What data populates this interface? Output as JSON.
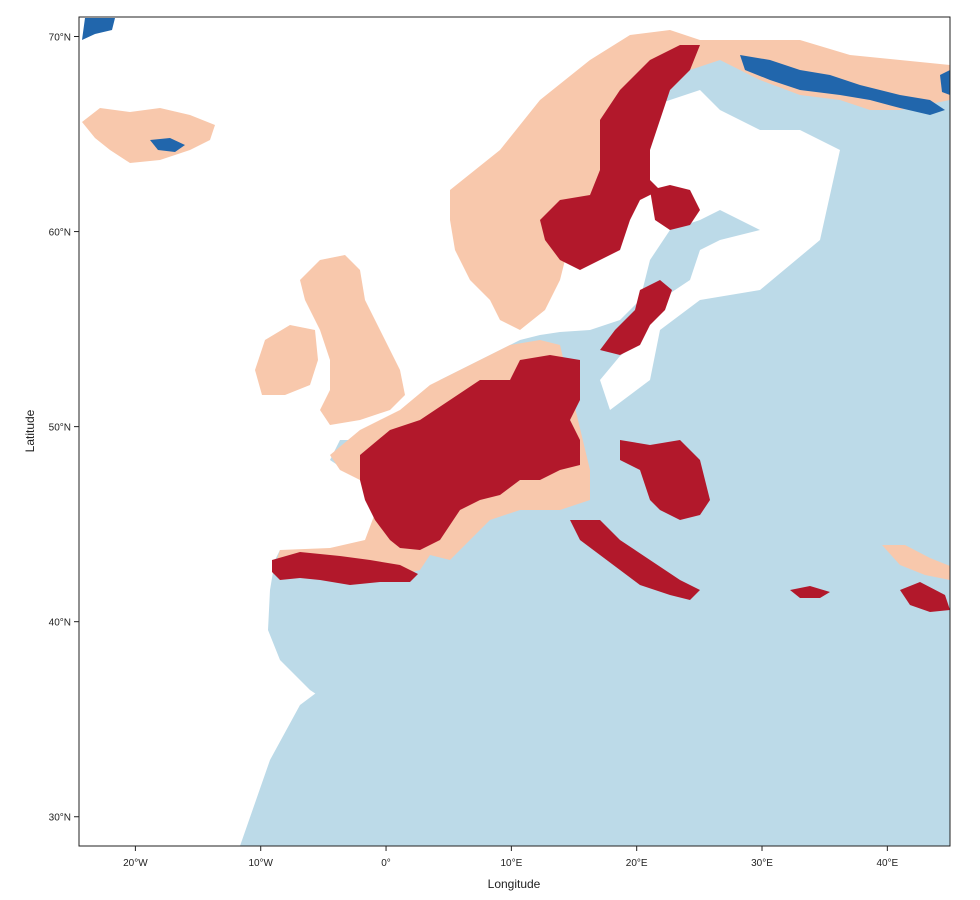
{
  "map": {
    "x_axis": {
      "title": "Longitude",
      "ticks": [
        {
          "value": -20,
          "label": "20°W"
        },
        {
          "value": -10,
          "label": "10°W"
        },
        {
          "value": 0,
          "label": "0°"
        },
        {
          "value": 10,
          "label": "10°E"
        },
        {
          "value": 20,
          "label": "20°E"
        },
        {
          "value": 30,
          "label": "30°E"
        },
        {
          "value": 40,
          "label": "40°E"
        }
      ],
      "range": [
        -24.5,
        45
      ]
    },
    "y_axis": {
      "title": "Latitude",
      "ticks": [
        {
          "value": 30,
          "label": "30°N"
        },
        {
          "value": 40,
          "label": "40°N"
        },
        {
          "value": 50,
          "label": "50°N"
        },
        {
          "value": 60,
          "label": "60°N"
        },
        {
          "value": 70,
          "label": "70°N"
        }
      ],
      "range": [
        28.5,
        71
      ]
    },
    "colors": {
      "sea": "#ffffff",
      "background_land": "#bcdae8",
      "light_red": "#f8c8ac",
      "dark_red": "#b2182b",
      "dark_blue": "#2166ac",
      "frame": "#222222"
    }
  }
}
